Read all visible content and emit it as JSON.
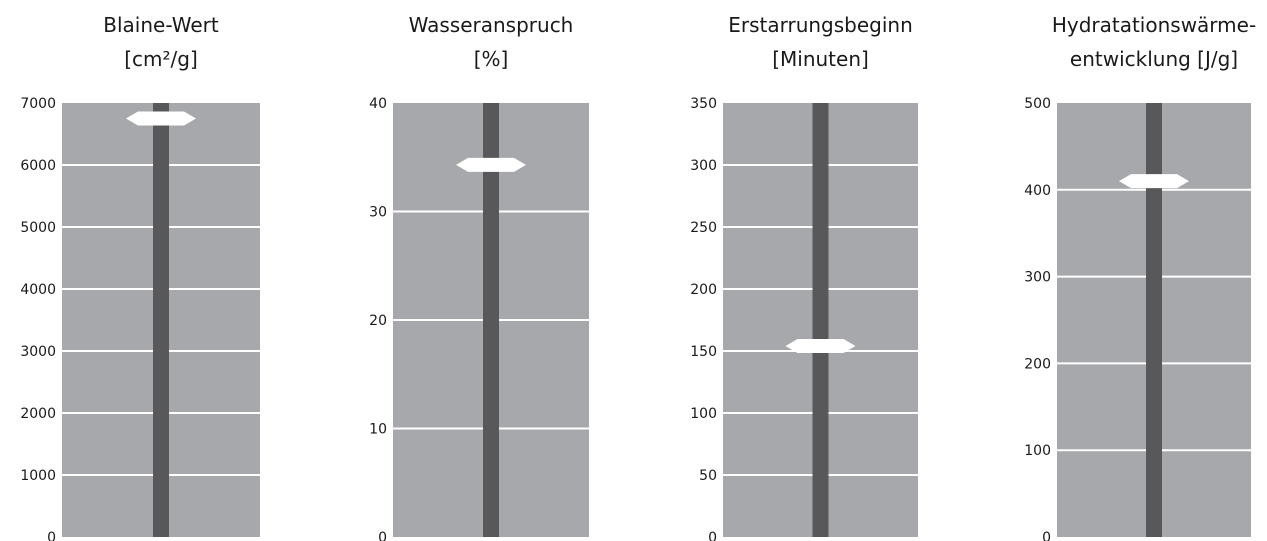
{
  "colors": {
    "panel": "#a7a8ab",
    "bar": "#58585a",
    "gridline": "#ffffff",
    "marker": "#ffffff",
    "text": "#1a1a1a"
  },
  "chart_data": [
    {
      "type": "gauge",
      "title": [
        "Blaine-Wert",
        "[cm²/g]"
      ],
      "ylim": [
        0,
        7000
      ],
      "yticks": [
        0,
        1000,
        2000,
        3000,
        4000,
        5000,
        6000,
        7000
      ],
      "value": 6750
    },
    {
      "type": "gauge",
      "title": [
        "Wasseranspruch",
        "[%]"
      ],
      "ylim": [
        0,
        40
      ],
      "yticks": [
        0,
        10,
        20,
        30,
        40
      ],
      "value": 34.3
    },
    {
      "type": "gauge",
      "title": [
        "Erstarrungsbeginn",
        "[Minuten]"
      ],
      "ylim": [
        0,
        350
      ],
      "yticks": [
        0,
        50,
        100,
        150,
        200,
        250,
        300,
        350
      ],
      "value": 154
    },
    {
      "type": "gauge",
      "title": [
        "Hydratationswärme-",
        "entwicklung [J/g]"
      ],
      "ylim": [
        0,
        500
      ],
      "yticks": [
        0,
        100,
        200,
        300,
        400,
        500
      ],
      "value": 410
    }
  ]
}
